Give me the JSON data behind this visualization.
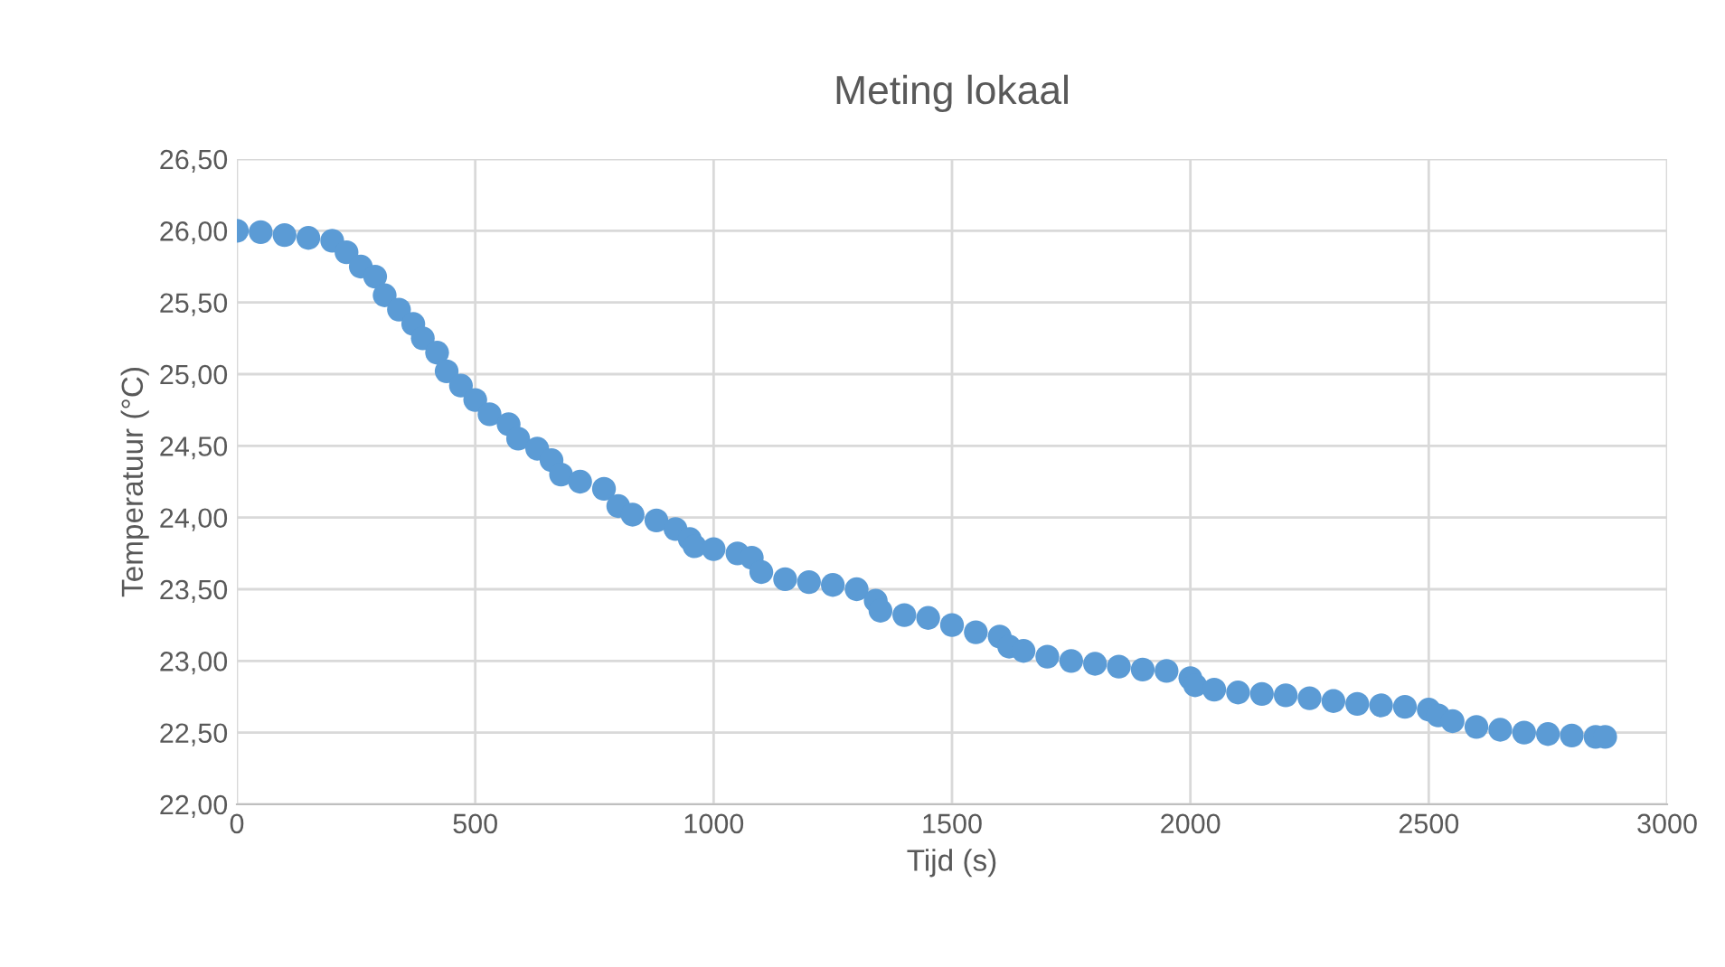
{
  "chart_data": {
    "type": "scatter",
    "title": "Meting lokaal",
    "xlabel": "Tijd (s)",
    "ylabel": "Temperatuur (°C)",
    "x": [
      0,
      50,
      100,
      150,
      200,
      230,
      260,
      290,
      310,
      340,
      370,
      390,
      420,
      440,
      470,
      500,
      530,
      570,
      590,
      630,
      660,
      680,
      720,
      770,
      800,
      830,
      880,
      920,
      950,
      960,
      1000,
      1050,
      1080,
      1100,
      1150,
      1200,
      1250,
      1300,
      1340,
      1350,
      1400,
      1450,
      1500,
      1550,
      1600,
      1620,
      1650,
      1700,
      1750,
      1800,
      1850,
      1900,
      1950,
      2000,
      2010,
      2050,
      2100,
      2150,
      2200,
      2250,
      2300,
      2350,
      2400,
      2450,
      2500,
      2520,
      2550,
      2600,
      2650,
      2700,
      2750,
      2800,
      2850,
      2870
    ],
    "series": [
      {
        "color": "#5b9bd5",
        "values": [
          26.0,
          25.99,
          25.97,
          25.95,
          25.93,
          25.85,
          25.75,
          25.68,
          25.55,
          25.45,
          25.35,
          25.25,
          25.15,
          25.02,
          24.92,
          24.82,
          24.72,
          24.65,
          24.55,
          24.48,
          24.4,
          24.3,
          24.25,
          24.2,
          24.08,
          24.02,
          23.98,
          23.92,
          23.85,
          23.8,
          23.78,
          23.75,
          23.72,
          23.62,
          23.57,
          23.55,
          23.53,
          23.5,
          23.42,
          23.35,
          23.32,
          23.3,
          23.25,
          23.2,
          23.17,
          23.1,
          23.07,
          23.03,
          23.0,
          22.98,
          22.96,
          22.94,
          22.93,
          22.88,
          22.83,
          22.8,
          22.78,
          22.77,
          22.76,
          22.74,
          22.72,
          22.7,
          22.69,
          22.68,
          22.66,
          22.62,
          22.58,
          22.54,
          22.52,
          22.5,
          22.49,
          22.48,
          22.47,
          22.47
        ]
      }
    ],
    "xlim": [
      0,
      3000
    ],
    "xticks": [
      0,
      500,
      1000,
      1500,
      2000,
      2500,
      3000
    ],
    "ylim": [
      22.0,
      26.5
    ],
    "yticks": [
      {
        "value": 22.0,
        "label": "22,00"
      },
      {
        "value": 22.5,
        "label": "22,50"
      },
      {
        "value": 23.0,
        "label": "23,00"
      },
      {
        "value": 23.5,
        "label": "23,50"
      },
      {
        "value": 24.0,
        "label": "24,00"
      },
      {
        "value": 24.5,
        "label": "24,50"
      },
      {
        "value": 25.0,
        "label": "25,00"
      },
      {
        "value": 25.5,
        "label": "25,50"
      },
      {
        "value": 26.0,
        "label": "26,00"
      },
      {
        "value": 26.5,
        "label": "26,50"
      }
    ],
    "grid": true,
    "marker": "circle"
  }
}
